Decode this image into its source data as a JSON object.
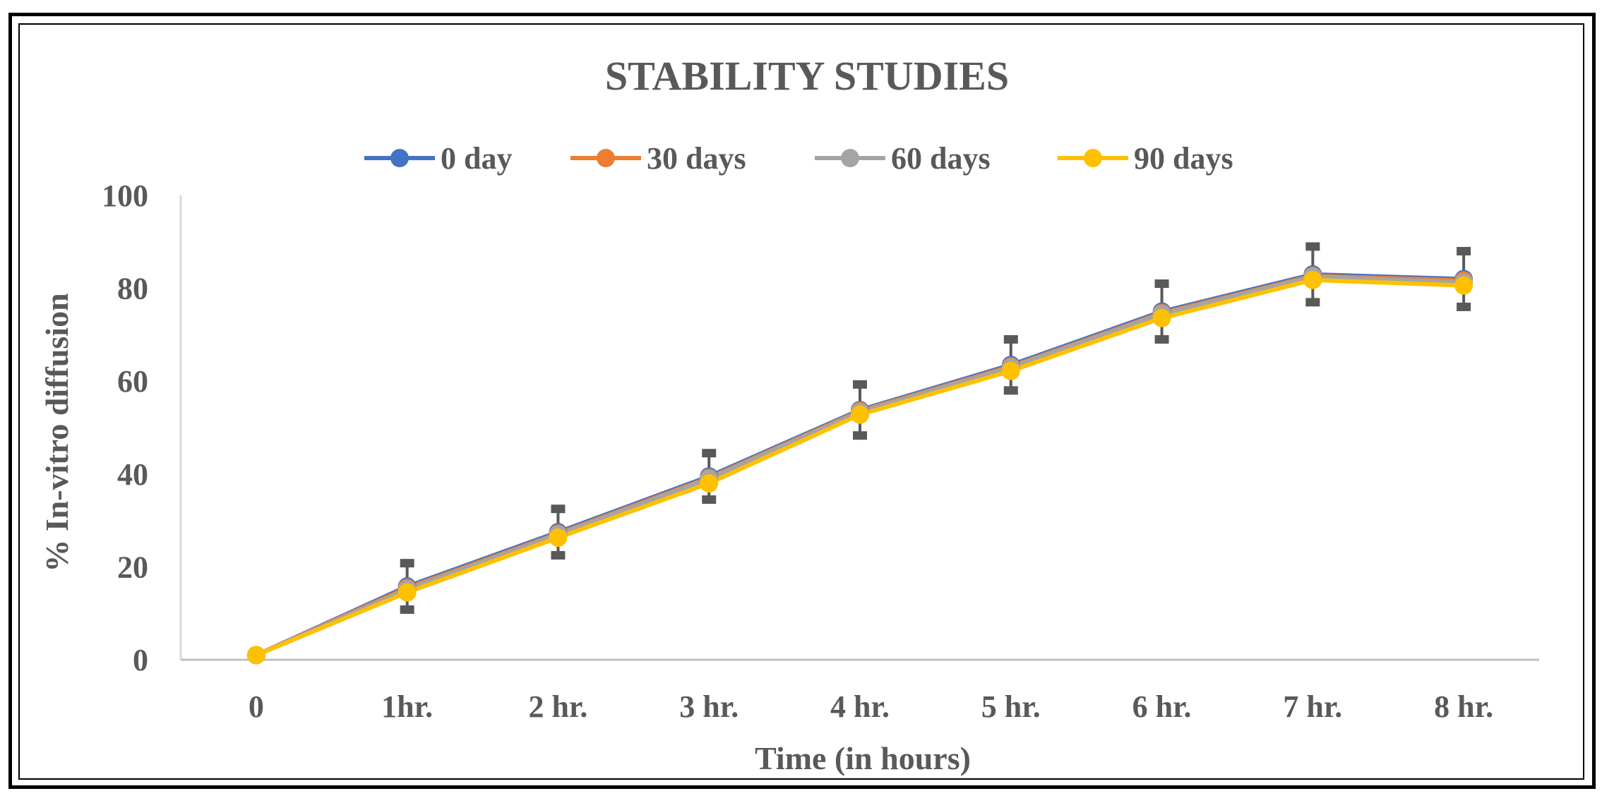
{
  "chart_data": {
    "type": "line",
    "title": "STABILITY STUDIES",
    "xlabel": "Time (in hours)",
    "ylabel": "% In-vitro diffusion",
    "categories": [
      "0",
      "1hr.",
      "2 hr.",
      "3 hr.",
      "4 hr.",
      "5 hr.",
      "6 hr.",
      "7 hr.",
      "8 hr."
    ],
    "ylim": [
      0,
      100
    ],
    "yticks": [
      0,
      20,
      40,
      60,
      80,
      100
    ],
    "legend_position": "top-center",
    "grid": false,
    "error_bars": [
      5,
      5,
      5,
      5.5,
      5.5,
      6,
      6,
      6
    ],
    "series": [
      {
        "name": "0 day",
        "color": "#4472C4",
        "values": [
          1.0,
          15.8,
          27.5,
          39.5,
          53.8,
          63.5,
          75.0,
          83.0,
          82.0
        ]
      },
      {
        "name": "30 days",
        "color": "#ED7D31",
        "values": [
          1.0,
          15.5,
          27.2,
          39.2,
          53.6,
          63.2,
          74.7,
          82.7,
          81.7
        ]
      },
      {
        "name": "60 days",
        "color": "#A5A5A5",
        "values": [
          1.0,
          15.2,
          27.0,
          39.0,
          53.4,
          63.0,
          74.5,
          82.5,
          81.3
        ]
      },
      {
        "name": "90 days",
        "color": "#FFC000",
        "values": [
          1.0,
          14.5,
          26.3,
          38.0,
          52.8,
          62.2,
          73.6,
          81.8,
          80.6
        ]
      }
    ]
  }
}
